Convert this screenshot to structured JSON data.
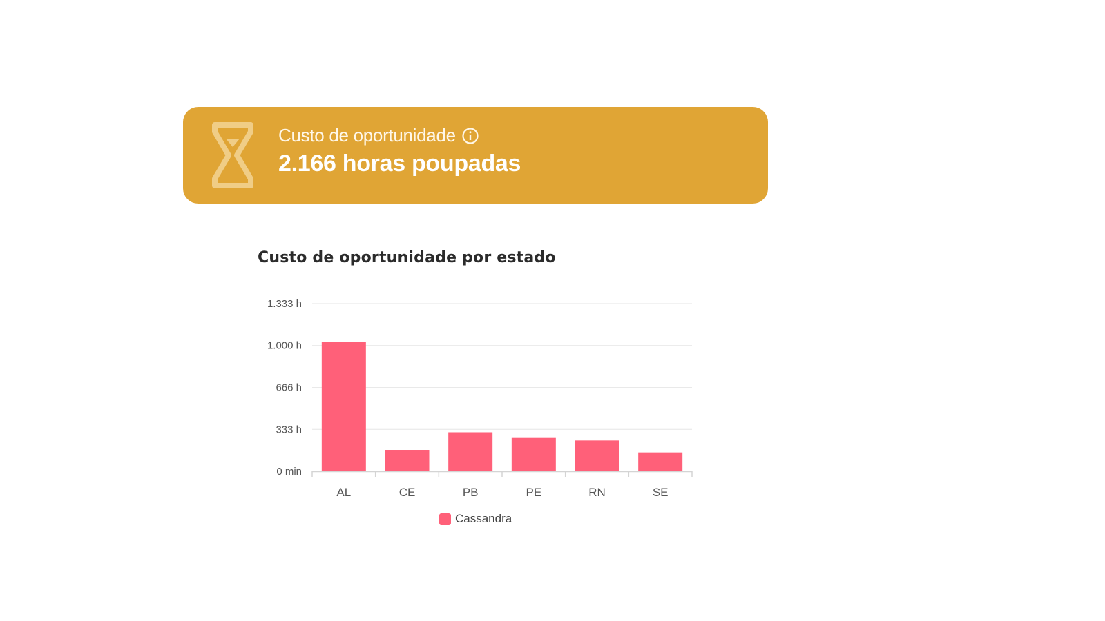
{
  "kpi": {
    "label": "Custo de oportunidade",
    "value": "2.166 horas poupadas",
    "icon": "hourglass-icon",
    "info_icon": "info-icon",
    "background_color": "#E0A535",
    "icon_color": "#F0CD86"
  },
  "chart_data": {
    "type": "bar",
    "title": "Custo de oportunidade por estado",
    "categories": [
      "AL",
      "CE",
      "PB",
      "PE",
      "RN",
      "SE"
    ],
    "series": [
      {
        "name": "Cassandra",
        "color": "#FF6079",
        "values": [
          1030,
          170,
          310,
          265,
          245,
          150
        ]
      }
    ],
    "yticks": [
      {
        "value": 0,
        "label": "0 min"
      },
      {
        "value": 333,
        "label": "333 h"
      },
      {
        "value": 666,
        "label": "666 h"
      },
      {
        "value": 1000,
        "label": "1.000 h"
      },
      {
        "value": 1333,
        "label": "1.333 h"
      }
    ],
    "ylim": [
      0,
      1333
    ],
    "xlabel": "",
    "ylabel": "",
    "grid": true,
    "legend_position": "bottom"
  }
}
